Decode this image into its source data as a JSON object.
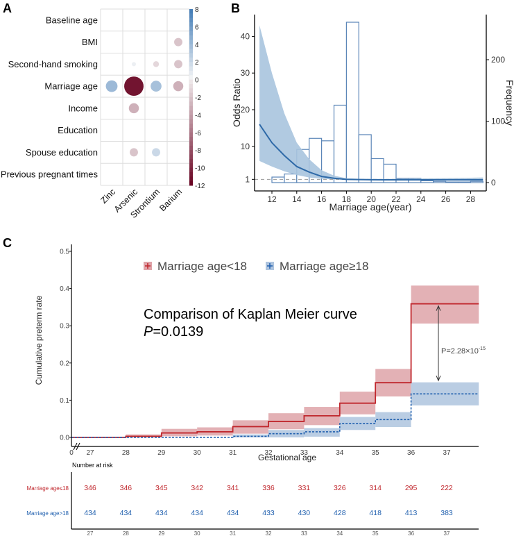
{
  "panel_labels": {
    "a": "A",
    "b": "B",
    "c": "C"
  },
  "chart_data": [
    {
      "type": "heatmap",
      "panel": "A",
      "rows": [
        "Baseline age",
        "BMI",
        "Second-hand smoking",
        "Marriage age",
        "Income",
        "Education",
        "Spouse education",
        "Previous pregnant times"
      ],
      "columns": [
        "Zinc",
        "Arsenic",
        "Strontium",
        "Barium"
      ],
      "values": [
        [
          0,
          0,
          0,
          0
        ],
        [
          0,
          0,
          0,
          -2
        ],
        [
          0,
          0.5,
          -1,
          -2
        ],
        [
          4,
          -11,
          3.5,
          -3
        ],
        [
          0,
          -3,
          0,
          0
        ],
        [
          0,
          0,
          0,
          0
        ],
        [
          0,
          -2,
          2,
          0
        ],
        [
          0,
          0,
          0,
          0
        ]
      ],
      "colorbar_ticks": [
        "8",
        "6",
        "4",
        "2",
        "0",
        "-2",
        "-4",
        "-6",
        "-8",
        "-10",
        "-12"
      ],
      "colorbar_range": [
        -12,
        8
      ],
      "colors": {
        "positive": "#2166ac",
        "negative": "#67001f",
        "zero": "#f7f7f7"
      }
    },
    {
      "type": "line",
      "panel": "B",
      "xlabel": "Marriage age(year)",
      "ylabel": "Odds Ratio",
      "y2label": "Frequency",
      "xticks": [
        "12",
        "14",
        "16",
        "18",
        "20",
        "22",
        "24",
        "26",
        "28"
      ],
      "yticks": [
        "1",
        "10",
        "20",
        "30",
        "40"
      ],
      "y2ticks": [
        "0",
        "100",
        "200"
      ],
      "xlim": [
        11,
        29
      ],
      "ylim": [
        0,
        45
      ],
      "y2lim": [
        0,
        270
      ],
      "reference_line": 1,
      "curve": {
        "x": [
          11,
          12,
          13,
          14,
          15,
          16,
          17,
          18,
          19,
          20,
          21,
          22,
          23,
          24,
          25,
          26,
          27,
          28,
          29
        ],
        "or": [
          16,
          11,
          7.5,
          4.5,
          3,
          1.8,
          1.3,
          1.0,
          0.95,
          0.9,
          0.88,
          0.87,
          0.86,
          0.86,
          0.86,
          0.87,
          0.87,
          0.88,
          0.88
        ],
        "upper": [
          43,
          30,
          19,
          11,
          6.5,
          3.5,
          2.0,
          1.3,
          1.15,
          1.1,
          1.1,
          1.15,
          1.2,
          1.25,
          1.3,
          1.35,
          1.4,
          1.45,
          1.5
        ],
        "lower": [
          6,
          4.5,
          3.2,
          2.2,
          1.5,
          1.15,
          1.0,
          0.9,
          0.85,
          0.8,
          0.78,
          0.75,
          0.72,
          0.7,
          0.68,
          0.66,
          0.64,
          0.62,
          0.6
        ]
      },
      "histogram": {
        "bin_start": [
          12,
          13,
          14,
          15,
          16,
          17,
          18,
          19,
          20,
          21,
          22,
          23,
          24,
          25,
          26,
          27,
          28
        ],
        "frequency": [
          9,
          14,
          54,
          72,
          68,
          126,
          261,
          78,
          39,
          30,
          7,
          7,
          3,
          2,
          1,
          1,
          2
        ]
      },
      "colors": {
        "line": "#2f6aa8",
        "band": "#a9c4de",
        "bar": "#5b86b8"
      }
    },
    {
      "type": "line",
      "panel": "C",
      "subtype": "kaplan-meier-step",
      "ylabel": "Cumulative preterm rate",
      "xlabel": "Gestational age",
      "yticks": [
        "0.0",
        "0.1",
        "0.2",
        "0.3",
        "0.4",
        "0.5"
      ],
      "xticks": [
        "0",
        "27",
        "28",
        "29",
        "30",
        "31",
        "32",
        "33",
        "34",
        "35",
        "36",
        "37"
      ],
      "ylim": [
        0,
        0.5
      ],
      "xlim": [
        27,
        37.9
      ],
      "legend": {
        "position": "top",
        "items": [
          "Marriage age<18",
          "Marriage age≥18"
        ]
      },
      "annotation_title": "Comparison of Kaplan Meier curve",
      "annotation_p_label": "P",
      "annotation_p_value": "=0.0139",
      "comparison_label": "P=2.28×10",
      "comparison_exp": "-15",
      "series": [
        {
          "name": "Marriage age<18",
          "color": "#c0272d",
          "band": "#dea3a8",
          "x": [
            27,
            28,
            29,
            30,
            31,
            32,
            33,
            34,
            35,
            36
          ],
          "y": [
            0,
            0.003,
            0.012,
            0.015,
            0.029,
            0.043,
            0.058,
            0.092,
            0.147,
            0.359
          ],
          "lower": [
            0,
            0,
            0.003,
            0.005,
            0.01,
            0.022,
            0.033,
            0.062,
            0.11,
            0.306
          ],
          "upper": [
            0,
            0.008,
            0.023,
            0.027,
            0.046,
            0.065,
            0.082,
            0.123,
            0.184,
            0.408
          ]
        },
        {
          "name": "Marriage age≥18",
          "color": "#1f5fae",
          "band": "#aec4de",
          "x": [
            27,
            28,
            29,
            30,
            31,
            32,
            33,
            34,
            35,
            36
          ],
          "y": [
            0,
            0,
            0,
            0,
            0.003,
            0.01,
            0.015,
            0.037,
            0.048,
            0.117
          ],
          "lower": [
            0,
            0,
            0,
            0,
            0,
            0,
            0.002,
            0.02,
            0.028,
            0.086
          ],
          "upper": [
            0,
            0,
            0,
            0,
            0.008,
            0.02,
            0.025,
            0.055,
            0.068,
            0.148
          ]
        }
      ],
      "risk_table": {
        "title": "Number at risk",
        "times": [
          "27",
          "28",
          "29",
          "30",
          "31",
          "32",
          "33",
          "34",
          "35",
          "36",
          "37"
        ],
        "rows": [
          {
            "label": "Marriage age≤18",
            "color": "#c0272d",
            "values": [
              "346",
              "346",
              "345",
              "342",
              "341",
              "336",
              "331",
              "326",
              "314",
              "295",
              "222"
            ]
          },
          {
            "label": "Marriage age>18",
            "color": "#1f5fae",
            "values": [
              "434",
              "434",
              "434",
              "434",
              "434",
              "433",
              "430",
              "428",
              "418",
              "413",
              "383"
            ]
          }
        ]
      }
    }
  ]
}
